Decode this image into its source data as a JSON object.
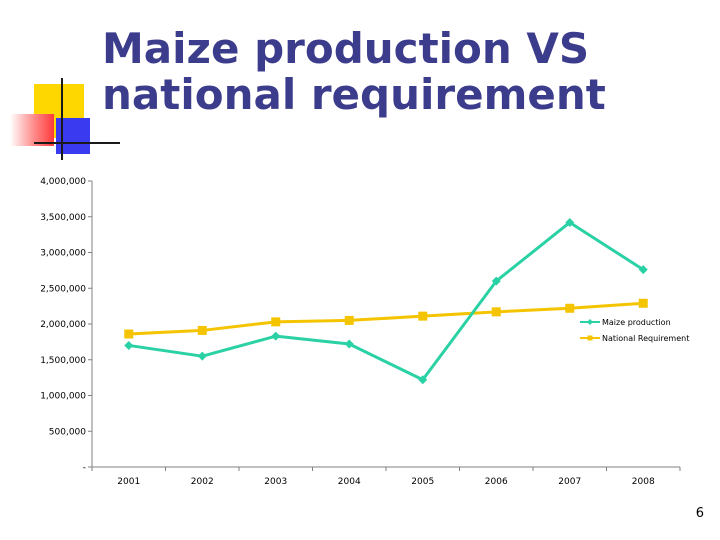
{
  "slide": {
    "title_line1": "Maize production VS",
    "title_line2": "national requirement",
    "page_number": "6"
  },
  "colors": {
    "title": "#3c3c8c",
    "maize": "#2ad1a4",
    "national": "#f5c400",
    "deco_yellow": "#ffd700",
    "deco_red": "#ff3b3b",
    "deco_blue": "#3a3af0"
  },
  "chart_data": {
    "type": "line",
    "x": [
      "2001",
      "2002",
      "2003",
      "2004",
      "2005",
      "2006",
      "2007",
      "2008"
    ],
    "y_ticks": [
      "-",
      "500,000",
      "1,000,000",
      "1,500,000",
      "2,000,000",
      "2,500,000",
      "3,000,000",
      "3,500,000",
      "4,000,000"
    ],
    "ylim": [
      0,
      4000000
    ],
    "grid": false,
    "legend_position": "right",
    "series": [
      {
        "name": "Maize production",
        "marker": "diamond",
        "color": "#2ad1a4",
        "values": [
          1700000,
          1550000,
          1830000,
          1720000,
          1220000,
          2600000,
          3420000,
          2760000
        ]
      },
      {
        "name": "National Requirement",
        "marker": "square",
        "color": "#f5c400",
        "values": [
          1860000,
          1910000,
          2030000,
          2050000,
          2110000,
          2170000,
          2220000,
          2290000
        ]
      }
    ]
  }
}
